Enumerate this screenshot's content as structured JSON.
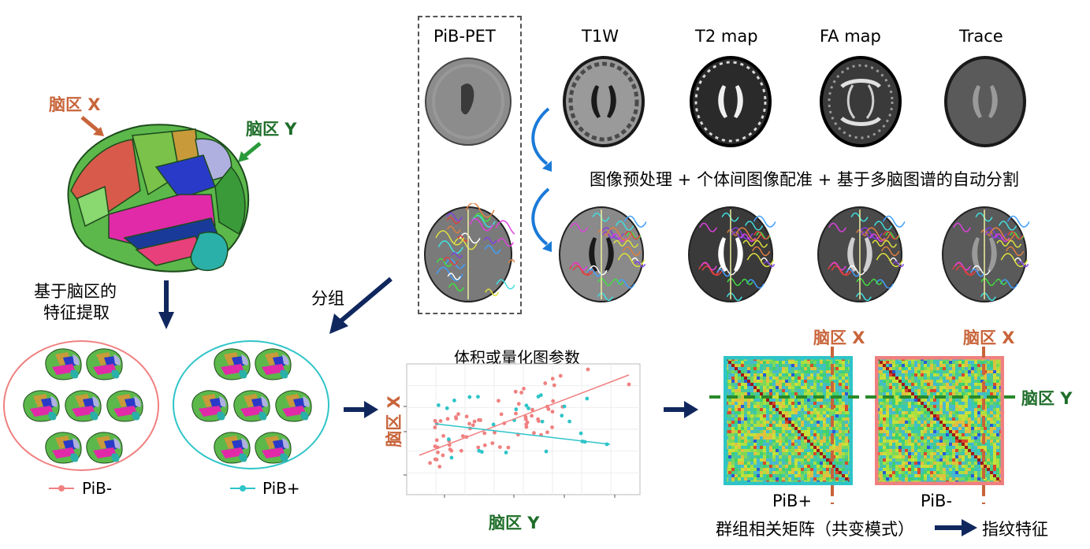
{
  "labels": {
    "region_x": "脑区 X",
    "region_y": "脑区 Y",
    "feature_extraction_l1": "基于脑区的",
    "feature_extraction_l2": "特征提取",
    "grouping": "分组",
    "legend_neg": "PiB-",
    "legend_pos": "PiB+",
    "modalities": [
      "PiB-PET",
      "T1W",
      "T2 map",
      "FA map",
      "Trace"
    ],
    "processing": "图像预处理 + 个体间图像配准 + 基于多脑图谱的自动分割",
    "scatter_title": "体积或量化图参数",
    "scatter_xlabel": "脑区 Y",
    "scatter_ylabel": "脑区 X",
    "matrix_pos": "PiB+",
    "matrix_neg": "PiB-",
    "matrix_caption": "群组相关矩阵（共变模式）",
    "fingerprint": "指纹特征"
  },
  "colors": {
    "pib_neg": "#f08080",
    "pib_pos": "#2ec4c8",
    "orange": "#c8643a",
    "green": "#1f6e2a",
    "arrow": "#10275e"
  }
}
